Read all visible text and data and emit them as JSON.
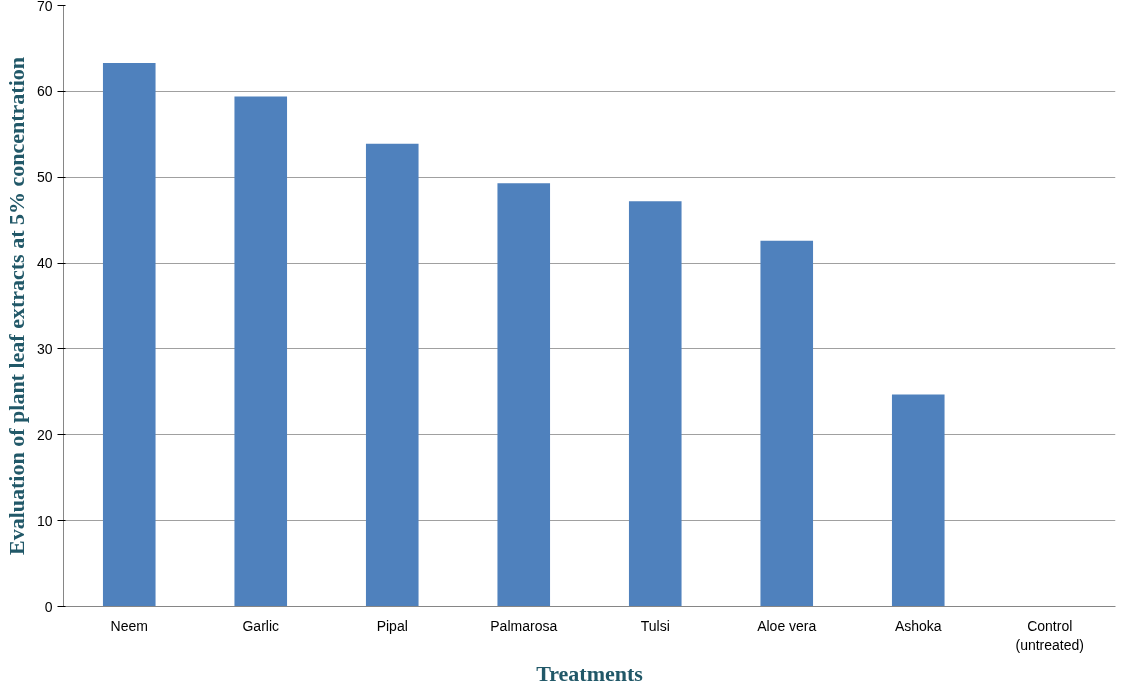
{
  "chart_data": {
    "type": "bar",
    "xlabel": "Treatments",
    "ylabel": "Evaluation of plant leaf extracts at 5% concentration",
    "categories": [
      "Neem",
      "Garlic",
      "Pipal",
      "Palmarosa",
      "Tulsi",
      "Aloe vera",
      "Ashoka",
      "Control (untreated)"
    ],
    "values": [
      63.3,
      59.4,
      53.9,
      49.3,
      47.2,
      42.6,
      24.7,
      0
    ],
    "color": "#4f81bd",
    "ylim": [
      0,
      70
    ],
    "yticks": [
      0,
      10,
      20,
      30,
      40,
      50,
      60,
      70
    ],
    "grid": "y"
  }
}
